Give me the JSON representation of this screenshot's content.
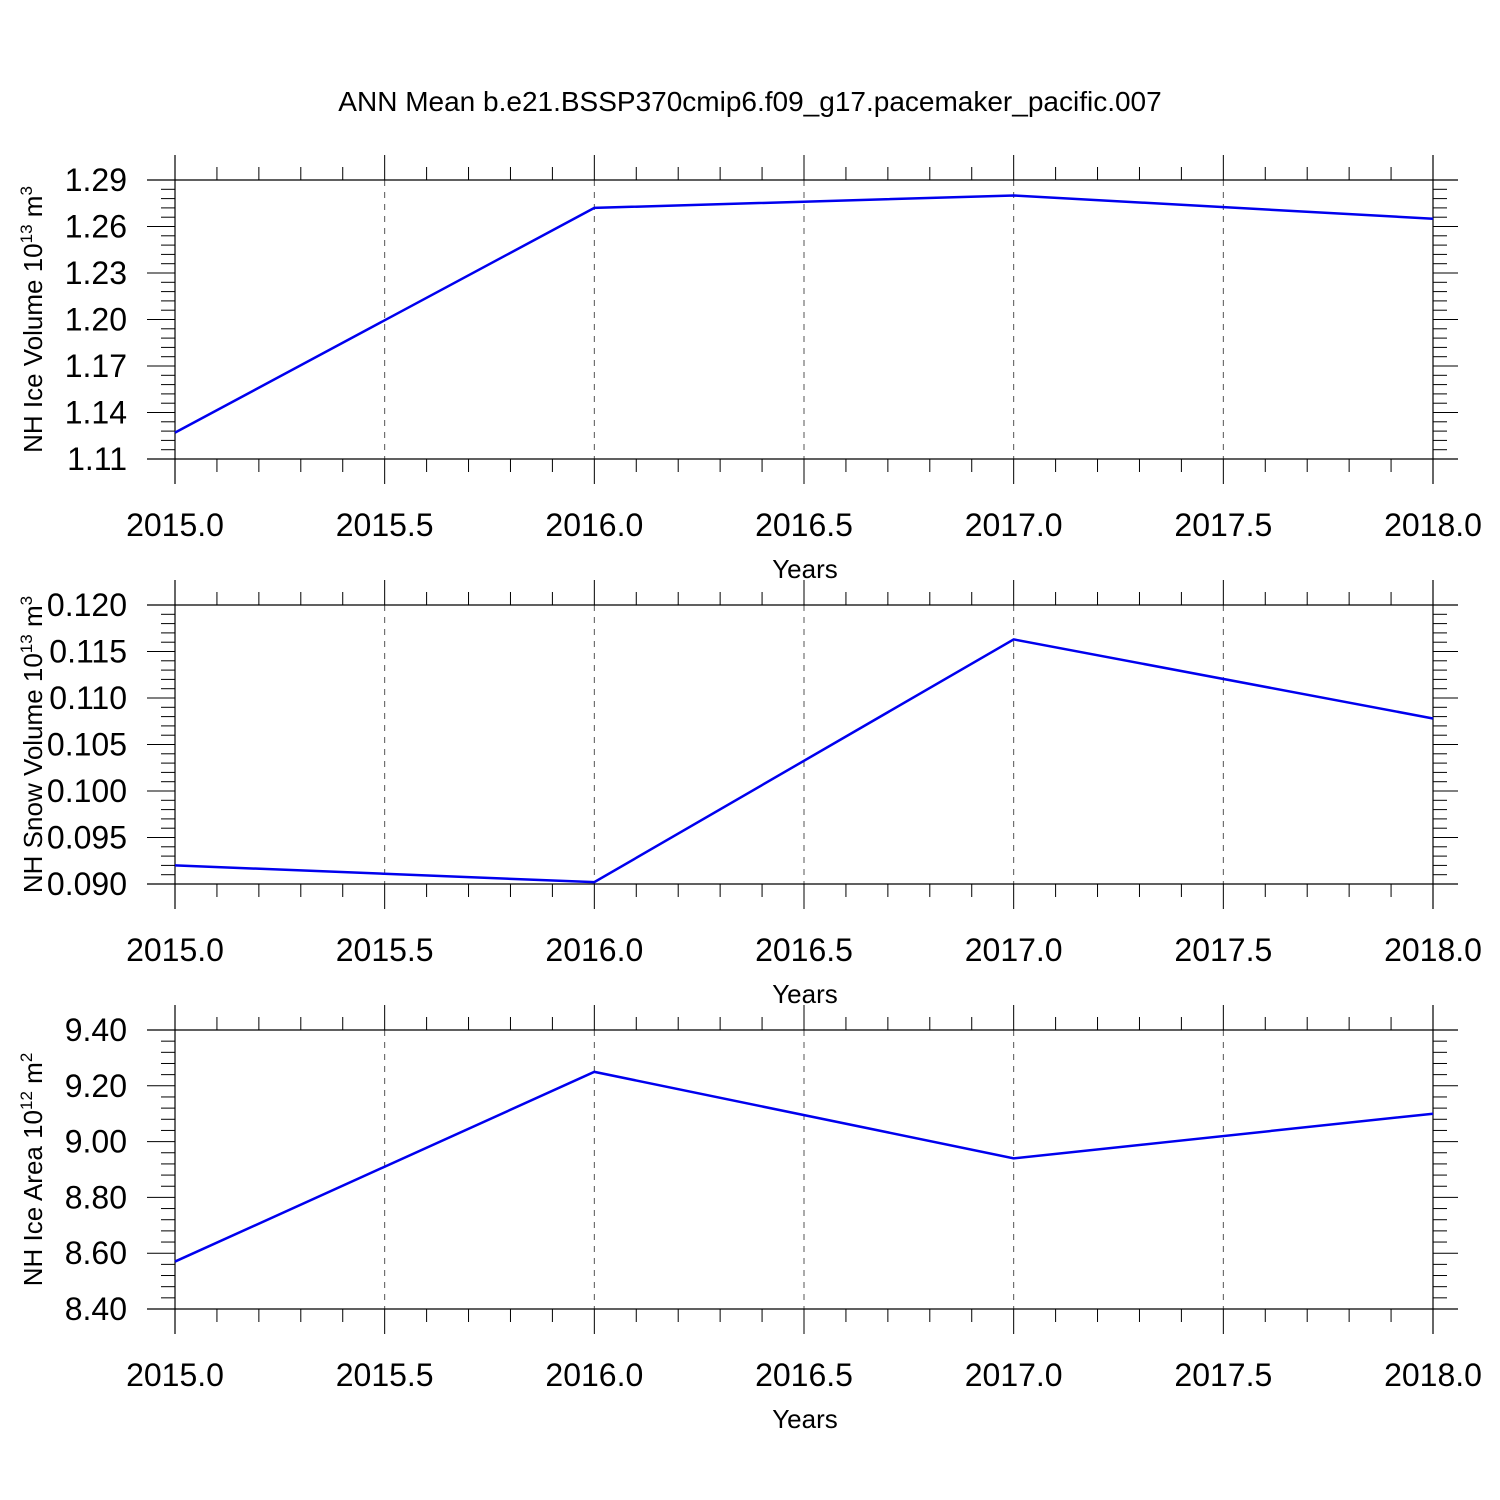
{
  "title": "ANN Mean b.e21.BSSP370cmip6.f09_g17.pacemaker_pacific.007",
  "colors": {
    "line": "#0000ee",
    "axis": "#000000",
    "grid": "#555555"
  },
  "chart_data": [
    {
      "type": "line",
      "x": [
        2015.0,
        2016.0,
        2017.0,
        2018.0
      ],
      "values": [
        1.127,
        1.272,
        1.28,
        1.265
      ],
      "xlim": [
        2015.0,
        2018.0
      ],
      "ylim": [
        1.11,
        1.29
      ],
      "xticks": [
        "2015.0",
        "2015.5",
        "2016.0",
        "2016.5",
        "2017.0",
        "2017.5",
        "2018.0"
      ],
      "yticks": [
        "1.11",
        "1.14",
        "1.17",
        "1.20",
        "1.23",
        "1.26",
        "1.29"
      ],
      "xlabel": "Years",
      "ylabel_main": "NH Ice Volume 10",
      "ylabel_exp": "13",
      "ylabel_unit": " m",
      "ylabel_unit_exp": "3",
      "grid": "vertical dashed at major x ticks"
    },
    {
      "type": "line",
      "x": [
        2015.0,
        2016.0,
        2017.0,
        2018.0
      ],
      "values": [
        0.092,
        0.0902,
        0.1163,
        0.1078
      ],
      "xlim": [
        2015.0,
        2018.0
      ],
      "ylim": [
        0.09,
        0.12
      ],
      "xticks": [
        "2015.0",
        "2015.5",
        "2016.0",
        "2016.5",
        "2017.0",
        "2017.5",
        "2018.0"
      ],
      "yticks": [
        "0.090",
        "0.095",
        "0.100",
        "0.105",
        "0.110",
        "0.115",
        "0.120"
      ],
      "xlabel": "Years",
      "ylabel_main": "NH Snow Volume 10",
      "ylabel_exp": "13",
      "ylabel_unit": " m",
      "ylabel_unit_exp": "3",
      "grid": "vertical dashed at major x ticks"
    },
    {
      "type": "line",
      "x": [
        2015.0,
        2016.0,
        2017.0,
        2018.0
      ],
      "values": [
        8.57,
        9.25,
        8.94,
        9.1
      ],
      "xlim": [
        2015.0,
        2018.0
      ],
      "ylim": [
        8.4,
        9.4
      ],
      "xticks": [
        "2015.0",
        "2015.5",
        "2016.0",
        "2016.5",
        "2017.0",
        "2017.5",
        "2018.0"
      ],
      "yticks": [
        "8.40",
        "8.60",
        "8.80",
        "9.00",
        "9.20",
        "9.40"
      ],
      "xlabel": "Years",
      "ylabel_main": "NH Ice Area 10",
      "ylabel_exp": "12",
      "ylabel_unit": " m",
      "ylabel_unit_exp": "2",
      "grid": "vertical dashed at major x ticks"
    }
  ]
}
